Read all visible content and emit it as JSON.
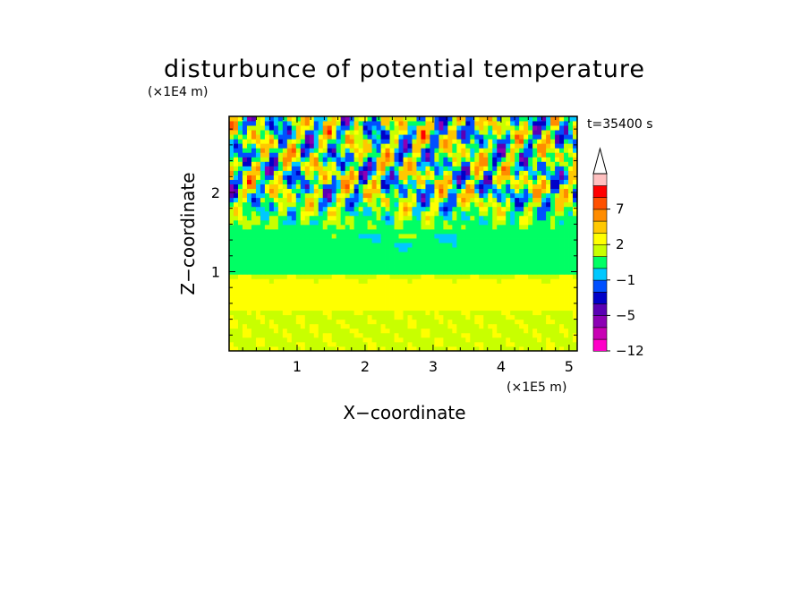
{
  "chart_data": {
    "type": "heatmap",
    "title": "disturbunce of potential temperature",
    "xlabel": "X−coordinate",
    "ylabel": "Z−coordinate",
    "x_unit": "(×1E5 m)",
    "y_unit": "(×1E4 m)",
    "time_label": "t=35400 s",
    "xlim": [
      0,
      5.12
    ],
    "ylim": [
      0,
      2.96
    ],
    "x_ticks": [
      1,
      2,
      3,
      4,
      5
    ],
    "x_tick_labels": [
      "1",
      "2",
      "3",
      "4",
      "5"
    ],
    "y_ticks": [
      1,
      2
    ],
    "y_tick_labels": [
      "1",
      "2"
    ],
    "colorbar": {
      "levels": [
        -12,
        -10,
        -8,
        -5,
        -4,
        -3,
        -1,
        0,
        1,
        2,
        3,
        5,
        7,
        8,
        10
      ],
      "colors": [
        "#ff00c8",
        "#c800b4",
        "#8c00b4",
        "#5a00b4",
        "#0000c8",
        "#0050ff",
        "#00c8ff",
        "#00ff64",
        "#c8ff00",
        "#ffff00",
        "#ffc800",
        "#ff8c00",
        "#ff5000",
        "#ff0000",
        "#ffc0c0"
      ],
      "over_color": "#ffffff",
      "extend": "max",
      "tick_values": [
        -12,
        -5,
        -1,
        2,
        7
      ],
      "tick_labels": [
        "−12",
        "−5",
        "−1",
        "2",
        "7"
      ]
    },
    "bands": [
      {
        "z_min": 0.0,
        "z_max": 0.5,
        "dominant_range": "1 to 3"
      },
      {
        "z_min": 0.5,
        "z_max": 0.95,
        "dominant_range": "2 to 3"
      },
      {
        "z_min": 0.95,
        "z_max": 1.5,
        "dominant_range": "0 to 1"
      },
      {
        "z_min": 1.5,
        "z_max": 2.96,
        "dominant_range": "-8 to 10"
      }
    ]
  }
}
